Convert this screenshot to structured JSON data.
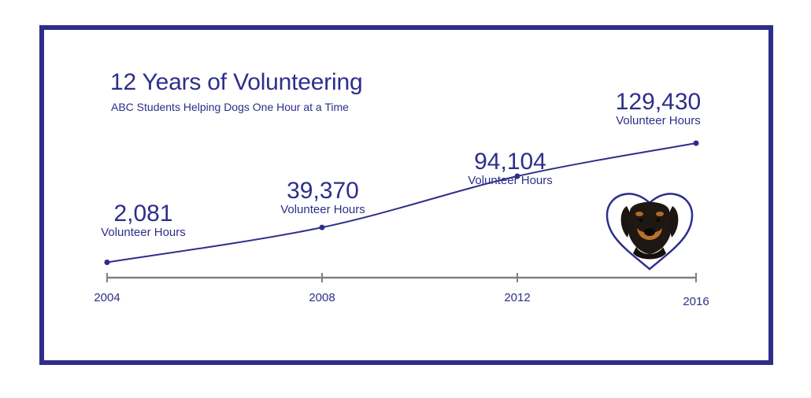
{
  "colors": {
    "primary": "#2e2e8a",
    "axis": "#808080",
    "frame": "#2e2e8a"
  },
  "icons": {
    "badge": "dog-in-heart-icon"
  },
  "chart_data": {
    "type": "line",
    "title": "12 Years of Volunteering",
    "subtitle": "ABC Students Helping Dogs One Hour at a Time",
    "x": [
      "2004",
      "2008",
      "2012",
      "2016"
    ],
    "values": [
      2081,
      39370,
      94104,
      129430
    ],
    "value_labels": [
      "2,081",
      "39,370",
      "94,104",
      "129,430"
    ],
    "unit_label": "Volunteer Hours",
    "xlabel": "",
    "ylabel": "",
    "grid": false
  }
}
